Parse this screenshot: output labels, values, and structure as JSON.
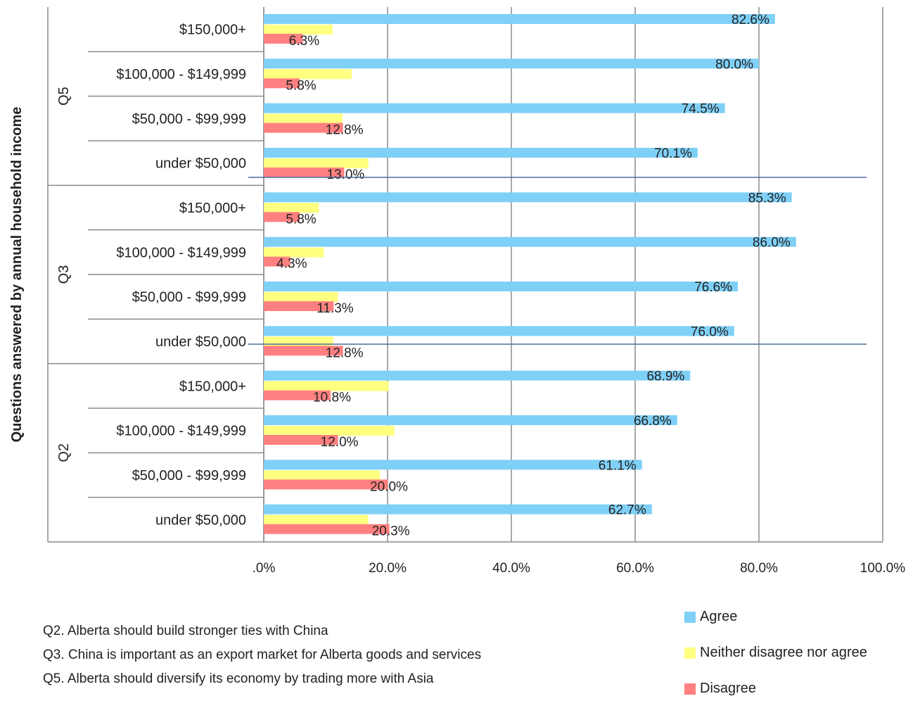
{
  "chart_data": {
    "type": "bar",
    "orientation": "horizontal",
    "ylabel": "Questions answered by annual household income",
    "x_ticks": [
      ".0%",
      "20.0%",
      "40.0%",
      "60.0%",
      "80.0%",
      "100.0%"
    ],
    "xlim": [
      0,
      100
    ],
    "grid": true,
    "legend_position": "bottom-right",
    "groups": [
      {
        "name": "Q5",
        "categories": [
          "$150,000+",
          "$100,000 - $149,999",
          "$50,000 - $99,999",
          "under $50,000"
        ]
      },
      {
        "name": "Q3",
        "categories": [
          "$150,000+",
          "$100,000 - $149,999",
          "$50,000 - $99,999",
          "under $50,000"
        ]
      },
      {
        "name": "Q2",
        "categories": [
          "$150,000+",
          "$100,000 - $149,999",
          "$50,000 - $99,999",
          "under $50,000"
        ]
      }
    ],
    "series": [
      {
        "name": "Agree",
        "color": "#7fd0f7",
        "values": [
          82.6,
          80.0,
          74.5,
          70.1,
          85.3,
          86.0,
          76.6,
          76.0,
          68.9,
          66.8,
          61.1,
          62.7
        ],
        "labels": [
          "82.6%",
          "80.0%",
          "74.5%",
          "70.1%",
          "85.3%",
          "86.0%",
          "76.6%",
          "76.0%",
          "68.9%",
          "66.8%",
          "61.1%",
          "62.7%"
        ]
      },
      {
        "name": "Neither disagree nor agree",
        "color": "#ffff80",
        "values": [
          11.1,
          14.2,
          12.7,
          16.9,
          8.9,
          9.7,
          12.0,
          11.2,
          20.2,
          21.1,
          18.8,
          16.9
        ],
        "labels": []
      },
      {
        "name": "Disagree",
        "color": "#ff8080",
        "values": [
          6.3,
          5.8,
          12.8,
          13.0,
          5.8,
          4.3,
          11.3,
          12.8,
          10.8,
          12.0,
          20.0,
          20.3
        ],
        "labels": [
          "6.3%",
          "5.8%",
          "12.8%",
          "13.0%",
          "5.8%",
          "4.3%",
          "11.3%",
          "12.8%",
          "10.8%",
          "12.0%",
          "20.0%",
          "20.3%"
        ]
      }
    ],
    "notes": [
      "Q2. Alberta should build stronger ties with China",
      "Q3. China is important as an export market for Alberta goods and services",
      "Q5. Alberta should diversify its economy by trading more with Asia"
    ]
  }
}
